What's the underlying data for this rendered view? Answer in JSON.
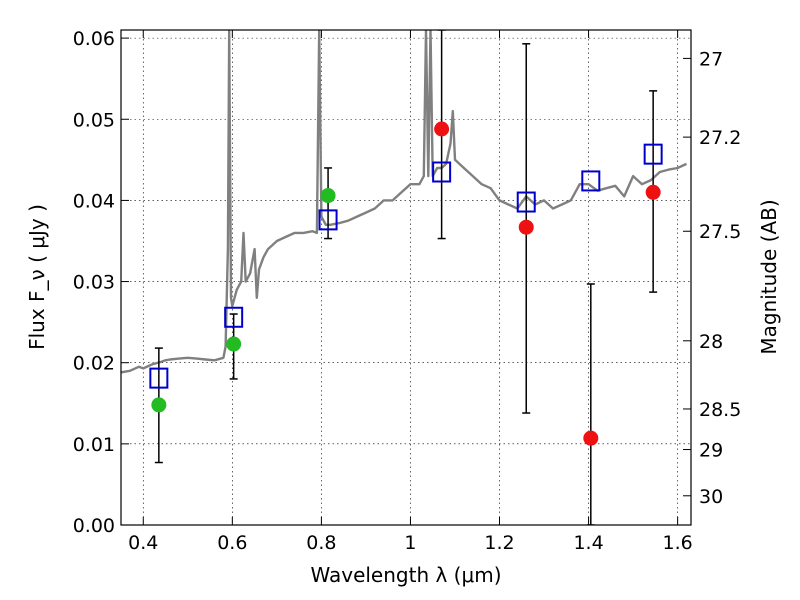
{
  "chart_data": {
    "type": "scatter",
    "title": "",
    "xlabel": "Wavelength  λ (μm)",
    "ylabel": "Flux  F_ν  ( μJy )",
    "ylabel_right": "Magnitude (AB)",
    "xlim": [
      0.35,
      1.63
    ],
    "ylim": [
      0.0,
      0.061
    ],
    "grid": true,
    "x_ticks": [
      0.4,
      0.6,
      0.8,
      1.0,
      1.2,
      1.4,
      1.6
    ],
    "x_tick_labels": [
      "0.4",
      "0.6",
      "0.8",
      "1",
      "1.2",
      "1.4",
      "1.6"
    ],
    "y_ticks": [
      0.0,
      0.01,
      0.02,
      0.03,
      0.04,
      0.05,
      0.06
    ],
    "y_tick_labels": [
      "0.00",
      "0.01",
      "0.02",
      "0.03",
      "0.04",
      "0.05",
      "0.06"
    ],
    "right_ticks": [
      {
        "label": "27",
        "flux": 0.0575
      },
      {
        "label": "27.2",
        "flux": 0.0478
      },
      {
        "label": "27.5",
        "flux": 0.0362
      },
      {
        "label": "28",
        "flux": 0.0227
      },
      {
        "label": "28.5",
        "flux": 0.0143
      },
      {
        "label": "29",
        "flux": 0.0093
      },
      {
        "label": "30",
        "flux": 0.0036
      }
    ],
    "spectrum": {
      "color": "#808080",
      "x": [
        0.35,
        0.37,
        0.39,
        0.4,
        0.42,
        0.44,
        0.45,
        0.46,
        0.48,
        0.5,
        0.52,
        0.54,
        0.56,
        0.58,
        0.585,
        0.59,
        0.593,
        0.597,
        0.6,
        0.61,
        0.62,
        0.625,
        0.63,
        0.64,
        0.65,
        0.655,
        0.66,
        0.67,
        0.68,
        0.7,
        0.72,
        0.74,
        0.76,
        0.78,
        0.79,
        0.795,
        0.8,
        0.81,
        0.82,
        0.84,
        0.86,
        0.88,
        0.9,
        0.92,
        0.94,
        0.96,
        0.98,
        1.0,
        1.02,
        1.03,
        1.035,
        1.04,
        1.045,
        1.05,
        1.06,
        1.07,
        1.08,
        1.09,
        1.095,
        1.1,
        1.12,
        1.14,
        1.16,
        1.18,
        1.2,
        1.22,
        1.24,
        1.26,
        1.28,
        1.3,
        1.32,
        1.34,
        1.36,
        1.38,
        1.4,
        1.42,
        1.44,
        1.46,
        1.48,
        1.5,
        1.52,
        1.54,
        1.56,
        1.58,
        1.6,
        1.62
      ],
      "y": [
        0.0188,
        0.019,
        0.0195,
        0.0193,
        0.0198,
        0.0201,
        0.0203,
        0.0204,
        0.0205,
        0.0206,
        0.0205,
        0.0204,
        0.0203,
        0.0206,
        0.022,
        0.034,
        0.061,
        0.028,
        0.027,
        0.029,
        0.03,
        0.036,
        0.03,
        0.031,
        0.034,
        0.028,
        0.0315,
        0.033,
        0.034,
        0.035,
        0.0355,
        0.036,
        0.036,
        0.0362,
        0.036,
        0.061,
        0.038,
        0.037,
        0.037,
        0.0372,
        0.0375,
        0.038,
        0.0385,
        0.039,
        0.04,
        0.04,
        0.041,
        0.042,
        0.042,
        0.043,
        0.061,
        0.043,
        0.061,
        0.043,
        0.044,
        0.044,
        0.0445,
        0.047,
        0.051,
        0.045,
        0.044,
        0.043,
        0.042,
        0.0415,
        0.04,
        0.0395,
        0.039,
        0.0405,
        0.0395,
        0.04,
        0.039,
        0.0395,
        0.04,
        0.042,
        0.042,
        0.0412,
        0.0415,
        0.0418,
        0.0405,
        0.043,
        0.042,
        0.0425,
        0.0435,
        0.0438,
        0.044,
        0.0445
      ]
    },
    "series": [
      {
        "marker": "open-square",
        "color": "#0000cc",
        "x": [
          0.435,
          0.603,
          0.815,
          1.07,
          1.26,
          1.405,
          1.545
        ],
        "y": [
          0.0181,
          0.0256,
          0.0376,
          0.0435,
          0.0398,
          0.0424,
          0.0457
        ]
      },
      {
        "marker": "filled-circle",
        "color": "#22bb22",
        "x": [
          0.435,
          0.603,
          0.815
        ],
        "y": [
          0.0148,
          0.0223,
          0.0406
        ]
      },
      {
        "marker": "filled-circle",
        "color": "#ee1111",
        "x": [
          1.07,
          1.26,
          1.405,
          1.545
        ],
        "y": [
          0.0488,
          0.0367,
          0.0107,
          0.041
        ]
      }
    ],
    "error_bars": [
      {
        "x": 0.435,
        "low": 0.0077,
        "high": 0.0218
      },
      {
        "x": 0.603,
        "low": 0.018,
        "high": 0.026
      },
      {
        "x": 0.815,
        "low": 0.0353,
        "high": 0.044
      },
      {
        "x": 1.07,
        "low": 0.0353,
        "high": 0.061
      },
      {
        "x": 1.26,
        "low": 0.0138,
        "high": 0.0593
      },
      {
        "x": 1.405,
        "low": 0.0,
        "high": 0.0297
      },
      {
        "x": 1.545,
        "low": 0.0287,
        "high": 0.0535
      }
    ]
  }
}
